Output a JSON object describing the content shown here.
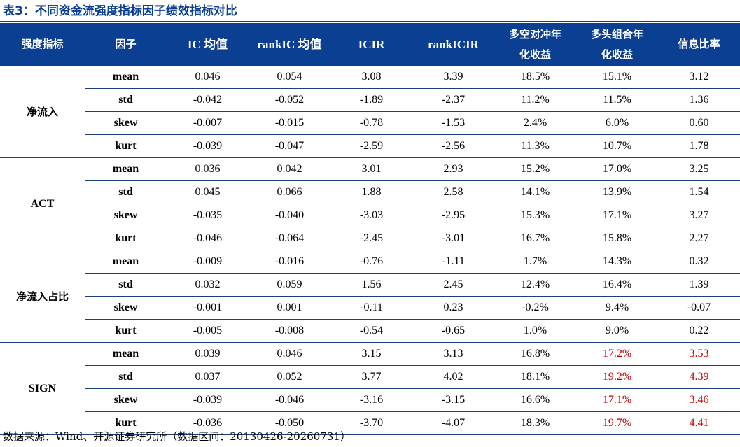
{
  "title": "表3：不同资金流强度指标因子绩效指标对比",
  "accent_color": "#0b3f91",
  "highlight_color": "#c00000",
  "headers": {
    "indicator": "强度指标",
    "factor": "因子",
    "ic_mean": "IC 均值",
    "rank_ic_mean": "rankIC 均值",
    "icir": "ICIR",
    "rank_icir": "rankICIR",
    "ls_return_line1": "多空对冲年",
    "ls_return_line2": "化收益",
    "long_return_line1": "多头组合年",
    "long_return_line2": "化收益",
    "info_ratio": "信息比率"
  },
  "groups": [
    {
      "name": "净流入",
      "rows": [
        {
          "factor": "mean",
          "ic": "0.046",
          "rank_ic": "0.054",
          "icir": "3.08",
          "rank_icir": "3.39",
          "ls": "18.5%",
          "long": "15.1%",
          "ir": "3.12"
        },
        {
          "factor": "std",
          "ic": "-0.042",
          "rank_ic": "-0.052",
          "icir": "-1.89",
          "rank_icir": "-2.37",
          "ls": "11.2%",
          "long": "11.5%",
          "ir": "1.36"
        },
        {
          "factor": "skew",
          "ic": "-0.007",
          "rank_ic": "-0.015",
          "icir": "-0.78",
          "rank_icir": "-1.53",
          "ls": "2.4%",
          "long": "6.0%",
          "ir": "0.60"
        },
        {
          "factor": "kurt",
          "ic": "-0.039",
          "rank_ic": "-0.047",
          "icir": "-2.59",
          "rank_icir": "-2.56",
          "ls": "11.3%",
          "long": "10.7%",
          "ir": "1.78"
        }
      ]
    },
    {
      "name": "ACT",
      "rows": [
        {
          "factor": "mean",
          "ic": "0.036",
          "rank_ic": "0.042",
          "icir": "3.01",
          "rank_icir": "2.93",
          "ls": "15.2%",
          "long": "17.0%",
          "ir": "3.25"
        },
        {
          "factor": "std",
          "ic": "0.045",
          "rank_ic": "0.066",
          "icir": "1.88",
          "rank_icir": "2.58",
          "ls": "14.1%",
          "long": "13.9%",
          "ir": "1.54"
        },
        {
          "factor": "skew",
          "ic": "-0.035",
          "rank_ic": "-0.040",
          "icir": "-3.03",
          "rank_icir": "-2.95",
          "ls": "15.3%",
          "long": "17.1%",
          "ir": "3.27"
        },
        {
          "factor": "kurt",
          "ic": "-0.046",
          "rank_ic": "-0.064",
          "icir": "-2.45",
          "rank_icir": "-3.01",
          "ls": "16.7%",
          "long": "15.8%",
          "ir": "2.27"
        }
      ]
    },
    {
      "name": "净流入占比",
      "rows": [
        {
          "factor": "mean",
          "ic": "-0.009",
          "rank_ic": "-0.016",
          "icir": "-0.76",
          "rank_icir": "-1.11",
          "ls": "1.7%",
          "long": "14.3%",
          "ir": "0.32"
        },
        {
          "factor": "std",
          "ic": "0.032",
          "rank_ic": "0.059",
          "icir": "1.56",
          "rank_icir": "2.45",
          "ls": "12.4%",
          "long": "16.4%",
          "ir": "1.39"
        },
        {
          "factor": "skew",
          "ic": "-0.001",
          "rank_ic": "0.001",
          "icir": "-0.11",
          "rank_icir": "0.23",
          "ls": "-0.2%",
          "long": "9.4%",
          "ir": "-0.07"
        },
        {
          "factor": "kurt",
          "ic": "-0.005",
          "rank_ic": "-0.008",
          "icir": "-0.54",
          "rank_icir": "-0.65",
          "ls": "1.0%",
          "long": "9.0%",
          "ir": "0.22"
        }
      ]
    },
    {
      "name": "SIGN",
      "rows": [
        {
          "factor": "mean",
          "ic": "0.039",
          "rank_ic": "0.046",
          "icir": "3.15",
          "rank_icir": "3.13",
          "ls": "16.8%",
          "long": "17.2%",
          "ir": "3.53"
        },
        {
          "factor": "std",
          "ic": "0.037",
          "rank_ic": "0.052",
          "icir": "3.77",
          "rank_icir": "4.02",
          "ls": "18.1%",
          "long": "19.2%",
          "ir": "4.39"
        },
        {
          "factor": "skew",
          "ic": "-0.039",
          "rank_ic": "-0.046",
          "icir": "-3.16",
          "rank_icir": "-3.15",
          "ls": "16.6%",
          "long": "17.1%",
          "ir": "3.46"
        },
        {
          "factor": "kurt",
          "ic": "-0.036",
          "rank_ic": "-0.050",
          "icir": "-3.70",
          "rank_icir": "-4.07",
          "ls": "18.3%",
          "long": "19.7%",
          "ir": "4.41"
        }
      ]
    }
  ],
  "source": "数据来源：Wind、开源证券研究所（数据区间：20130426-20260731）"
}
